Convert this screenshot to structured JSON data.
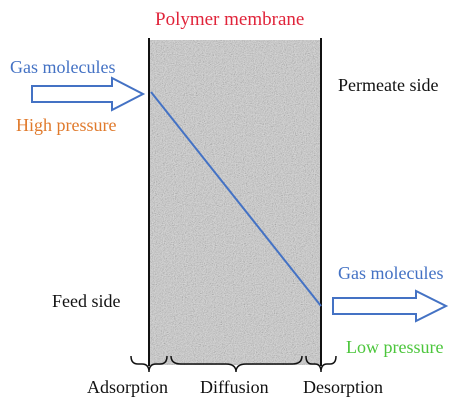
{
  "diagram": {
    "title": "Polymer membrane",
    "gas_in_label": "Gas molecules",
    "high_pressure_label": "High pressure",
    "permeate_side_label": "Permeate side",
    "feed_side_label": "Feed side",
    "gas_out_label": "Gas molecules",
    "low_pressure_label": "Low pressure",
    "stages": [
      "Adsorption",
      "Diffusion",
      "Desorption"
    ]
  },
  "colors": {
    "title": "#e0243a",
    "gas": "#4472c4",
    "high_pressure": "#e07a2c",
    "low_pressure": "#4cc63c",
    "gradient_line": "#4472c4",
    "membrane_fill": "#c9c9c9"
  }
}
